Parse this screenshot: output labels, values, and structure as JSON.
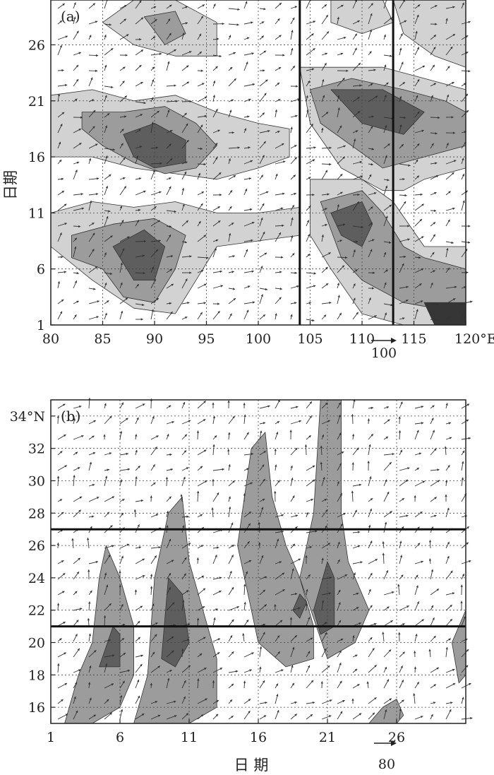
{
  "colors": {
    "shade_light": "#d2d2d2",
    "shade_medium": "#9c9c9c",
    "shade_dark": "#5e5e5e",
    "shade_darkest": "#363636",
    "line": "#222222",
    "grid": "#444444"
  },
  "chart_data": [
    {
      "panel": "(a)",
      "type": "heatmap",
      "description_levels": [
        20,
        40,
        60,
        80
      ],
      "xlabel": "",
      "ylabel": "日期",
      "x_ticks": [
        "80",
        "85",
        "90",
        "95",
        "100",
        "105",
        "110",
        "115",
        "120°E"
      ],
      "y_ticks": [
        "1",
        "6",
        "11",
        "16",
        "21",
        "26"
      ],
      "xlim": [
        80,
        120
      ],
      "ylim": [
        1,
        30
      ],
      "grid": true,
      "reference_lines_x": [
        104,
        113
      ],
      "vector_scale_label": "100",
      "shaded_regions": [
        {
          "level": 20,
          "polygon": [
            [
              80,
              21.5
            ],
            [
              84,
              22
            ],
            [
              88,
              21
            ],
            [
              92,
              21.5
            ],
            [
              96,
              20
            ],
            [
              100,
              19
            ],
            [
              103,
              18.5
            ],
            [
              103,
              16
            ],
            [
              100,
              15
            ],
            [
              96,
              14
            ],
            [
              92,
              14.5
            ],
            [
              88,
              15
            ],
            [
              84,
              16
            ],
            [
              80,
              16
            ]
          ]
        },
        {
          "level": 40,
          "polygon": [
            [
              83,
              20
            ],
            [
              87,
              20
            ],
            [
              91,
              20.5
            ],
            [
              94,
              19
            ],
            [
              96,
              17
            ],
            [
              94,
              15
            ],
            [
              91,
              14.5
            ],
            [
              88,
              15.5
            ],
            [
              85,
              17
            ],
            [
              83,
              18.5
            ]
          ]
        },
        {
          "level": 60,
          "polygon": [
            [
              87,
              18
            ],
            [
              90,
              19
            ],
            [
              93,
              17.5
            ],
            [
              93,
              15.5
            ],
            [
              90,
              15
            ],
            [
              88,
              16
            ]
          ]
        },
        {
          "level": 20,
          "polygon": [
            [
              80,
              11
            ],
            [
              84,
              12
            ],
            [
              88,
              11.5
            ],
            [
              92,
              12
            ],
            [
              96,
              11
            ],
            [
              100,
              11
            ],
            [
              104,
              11.5
            ],
            [
              104,
              9
            ],
            [
              100,
              8.5
            ],
            [
              96,
              8
            ],
            [
              94,
              5
            ],
            [
              92,
              2
            ],
            [
              88,
              2.5
            ],
            [
              84,
              5
            ],
            [
              80,
              8
            ]
          ]
        },
        {
          "level": 40,
          "polygon": [
            [
              82,
              9
            ],
            [
              86,
              10
            ],
            [
              90,
              10.5
            ],
            [
              93,
              9
            ],
            [
              92,
              6
            ],
            [
              90,
              3
            ],
            [
              87,
              3.5
            ],
            [
              85,
              6
            ],
            [
              82,
              7
            ]
          ]
        },
        {
          "level": 60,
          "polygon": [
            [
              86,
              8
            ],
            [
              89,
              9.5
            ],
            [
              91,
              8
            ],
            [
              90,
              5
            ],
            [
              88,
              5
            ]
          ]
        },
        {
          "level": 20,
          "polygon": [
            [
              88,
              30
            ],
            [
              92,
              30
            ],
            [
              96,
              28
            ],
            [
              96,
              25
            ],
            [
              92,
              25
            ],
            [
              88,
              26
            ],
            [
              85,
              28
            ]
          ]
        },
        {
          "level": 40,
          "polygon": [
            [
              89,
              28.5
            ],
            [
              92,
              29
            ],
            [
              93,
              27
            ],
            [
              91,
              26
            ]
          ]
        },
        {
          "level": 20,
          "polygon": [
            [
              104,
              24
            ],
            [
              108,
              24
            ],
            [
              112,
              24
            ],
            [
              116,
              23
            ],
            [
              120,
              22
            ],
            [
              120,
              15
            ],
            [
              116,
              14
            ],
            [
              114,
              13
            ],
            [
              112,
              13
            ],
            [
              108,
              15
            ],
            [
              105,
              19
            ]
          ]
        },
        {
          "level": 40,
          "polygon": [
            [
              105,
              22
            ],
            [
              109,
              23
            ],
            [
              114,
              22
            ],
            [
              118,
              21
            ],
            [
              120,
              20
            ],
            [
              120,
              17
            ],
            [
              116,
              16
            ],
            [
              112,
              15
            ],
            [
              109,
              17
            ],
            [
              106,
              19
            ]
          ]
        },
        {
          "level": 60,
          "polygon": [
            [
              107,
              22
            ],
            [
              112,
              22
            ],
            [
              116,
              20
            ],
            [
              114,
              18
            ],
            [
              110,
              19
            ]
          ]
        },
        {
          "level": 20,
          "polygon": [
            [
              105,
              14
            ],
            [
              110,
              14
            ],
            [
              113,
              12
            ],
            [
              116,
              8
            ],
            [
              120,
              8
            ],
            [
              120,
              1
            ],
            [
              114,
              1
            ],
            [
              110,
              2
            ],
            [
              107,
              6
            ],
            [
              105,
              9
            ]
          ]
        },
        {
          "level": 40,
          "polygon": [
            [
              106,
              12
            ],
            [
              110,
              13
            ],
            [
              112,
              11
            ],
            [
              114,
              8
            ],
            [
              116,
              7
            ],
            [
              120,
              6
            ],
            [
              120,
              2
            ],
            [
              114,
              3
            ],
            [
              110,
              5
            ],
            [
              108,
              7
            ]
          ]
        },
        {
          "level": 60,
          "polygon": [
            [
              107,
              11
            ],
            [
              110,
              12
            ],
            [
              111,
              10
            ],
            [
              110,
              8
            ],
            [
              108,
              9
            ]
          ]
        },
        {
          "level": 80,
          "polygon": [
            [
              116,
              3
            ],
            [
              120,
              3
            ],
            [
              120,
              1
            ],
            [
              117,
              1
            ]
          ]
        },
        {
          "level": 20,
          "polygon": [
            [
              113,
              30
            ],
            [
              116,
              30
            ],
            [
              120,
              30
            ],
            [
              120,
              24
            ],
            [
              117,
              25
            ],
            [
              114,
              27
            ]
          ]
        },
        {
          "level": 20,
          "polygon": [
            [
              107,
              30
            ],
            [
              112,
              30
            ],
            [
              113,
              28
            ],
            [
              110,
              27
            ],
            [
              107,
              28
            ]
          ]
        }
      ]
    },
    {
      "panel": "(b)",
      "type": "heatmap",
      "description_levels": [
        20,
        40,
        60
      ],
      "xlabel": "日 期",
      "ylabel": "",
      "x_ticks": [
        "1",
        "6",
        "11",
        "16",
        "21",
        "26"
      ],
      "y_ticks": [
        "16",
        "18",
        "20",
        "22",
        "24",
        "26",
        "28",
        "30",
        "32",
        "34°N"
      ],
      "xlim": [
        1,
        31
      ],
      "ylim": [
        15,
        35
      ],
      "grid": true,
      "reference_lines_y": [
        21,
        27
      ],
      "vector_scale_label": "80",
      "shaded_regions": [
        {
          "level": 40,
          "polygon": [
            [
              2,
              15
            ],
            [
              3,
              18
            ],
            [
              4,
              20
            ],
            [
              4.5,
              24
            ],
            [
              5,
              26
            ],
            [
              6,
              24
            ],
            [
              7,
              21
            ],
            [
              7,
              18
            ],
            [
              6,
              16
            ],
            [
              4,
              15
            ]
          ]
        },
        {
          "level": 60,
          "polygon": [
            [
              4.5,
              18.5
            ],
            [
              5.5,
              21
            ],
            [
              6,
              20.5
            ],
            [
              6,
              18.5
            ]
          ]
        },
        {
          "level": 40,
          "polygon": [
            [
              7,
              15
            ],
            [
              8,
              18
            ],
            [
              8.5,
              24
            ],
            [
              9.5,
              28
            ],
            [
              10.5,
              29
            ],
            [
              11,
              25
            ],
            [
              12,
              22
            ],
            [
              13,
              19
            ],
            [
              13,
              16
            ],
            [
              11,
              15
            ]
          ]
        },
        {
          "level": 60,
          "polygon": [
            [
              9,
              19
            ],
            [
              9.5,
              24
            ],
            [
              10.5,
              23
            ],
            [
              11,
              20
            ],
            [
              10,
              18.5
            ]
          ]
        },
        {
          "level": 40,
          "polygon": [
            [
              14.5,
              26
            ],
            [
              15.5,
              32
            ],
            [
              16.5,
              33
            ],
            [
              17,
              29
            ],
            [
              18,
              26
            ],
            [
              19,
              24
            ],
            [
              20,
              21
            ],
            [
              20,
              19
            ],
            [
              18,
              18.5
            ],
            [
              16,
              20
            ]
          ]
        },
        {
          "level": 60,
          "polygon": [
            [
              18.5,
              22
            ],
            [
              19,
              23
            ],
            [
              19.5,
              22.5
            ],
            [
              19,
              21.5
            ]
          ]
        },
        {
          "level": 40,
          "polygon": [
            [
              19,
              24
            ],
            [
              20,
              28
            ],
            [
              20.5,
              35
            ],
            [
              22,
              35
            ],
            [
              22,
              28
            ],
            [
              22.5,
              25
            ],
            [
              24,
              22
            ],
            [
              23,
              20
            ],
            [
              21,
              19
            ]
          ]
        },
        {
          "level": 60,
          "polygon": [
            [
              20,
              22
            ],
            [
              21,
              25
            ],
            [
              21.5,
              24
            ],
            [
              21.5,
              21
            ],
            [
              20.5,
              20.5
            ]
          ]
        },
        {
          "level": 40,
          "polygon": [
            [
              30,
              20
            ],
            [
              31,
              22
            ],
            [
              31,
              18
            ],
            [
              30.5,
              17.5
            ]
          ]
        },
        {
          "level": 40,
          "polygon": [
            [
              24,
              15
            ],
            [
              25,
              16
            ],
            [
              26,
              16.5
            ],
            [
              26.5,
              15.5
            ],
            [
              26,
              15
            ]
          ]
        }
      ]
    }
  ]
}
